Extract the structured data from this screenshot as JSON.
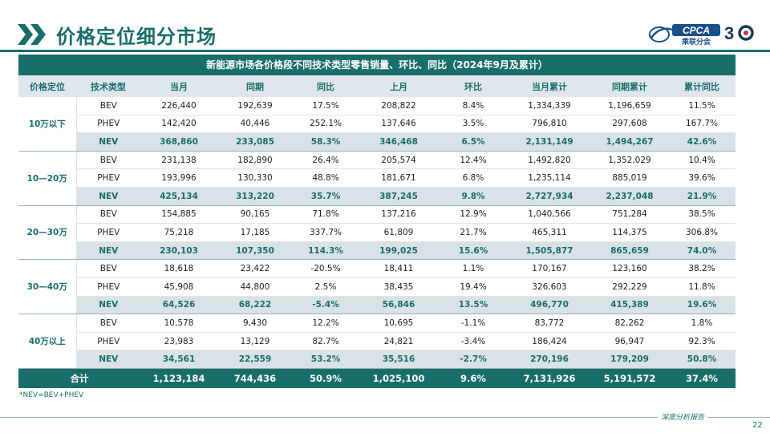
{
  "header": {
    "title": "价格定位细分市场",
    "logo_text": "CPCA",
    "logo_sub": "乘联分会",
    "anniv": "30"
  },
  "table": {
    "title": "新能源市场各价格段不同技术类型零售销量、环比、同比（2024年9月及累计）",
    "columns": [
      "价格定位",
      "技术类型",
      "当月",
      "同期",
      "同比",
      "上月",
      "环比",
      "当月累计",
      "同期累计",
      "累计同比"
    ],
    "groups": [
      {
        "label": "10万以下",
        "rows": [
          {
            "type": "BEV",
            "cells": [
              "226,440",
              "192,639",
              "17.5%",
              "208,822",
              "8.4%",
              "1,334,339",
              "1,196,659",
              "11.5%"
            ]
          },
          {
            "type": "PHEV",
            "cells": [
              "142,420",
              "40,446",
              "252.1%",
              "137,646",
              "3.5%",
              "796,810",
              "297,608",
              "167.7%"
            ]
          },
          {
            "type": "NEV",
            "cells": [
              "368,860",
              "233,085",
              "58.3%",
              "346,468",
              "6.5%",
              "2,131,149",
              "1,494,267",
              "42.6%"
            ]
          }
        ]
      },
      {
        "label": "10—20万",
        "rows": [
          {
            "type": "BEV",
            "cells": [
              "231,138",
              "182,890",
              "26.4%",
              "205,574",
              "12.4%",
              "1,492,820",
              "1,352,029",
              "10.4%"
            ]
          },
          {
            "type": "PHEV",
            "cells": [
              "193,996",
              "130,330",
              "48.8%",
              "181,671",
              "6.8%",
              "1,235,114",
              "885,019",
              "39.6%"
            ]
          },
          {
            "type": "NEV",
            "cells": [
              "425,134",
              "313,220",
              "35.7%",
              "387,245",
              "9.8%",
              "2,727,934",
              "2,237,048",
              "21.9%"
            ]
          }
        ]
      },
      {
        "label": "20—30万",
        "rows": [
          {
            "type": "BEV",
            "cells": [
              "154,885",
              "90,165",
              "71.8%",
              "137,216",
              "12.9%",
              "1,040,566",
              "751,284",
              "38.5%"
            ]
          },
          {
            "type": "PHEV",
            "cells": [
              "75,218",
              "17,185",
              "337.7%",
              "61,809",
              "21.7%",
              "465,311",
              "114,375",
              "306.8%"
            ]
          },
          {
            "type": "NEV",
            "cells": [
              "230,103",
              "107,350",
              "114.3%",
              "199,025",
              "15.6%",
              "1,505,877",
              "865,659",
              "74.0%"
            ]
          }
        ]
      },
      {
        "label": "30—40万",
        "rows": [
          {
            "type": "BEV",
            "cells": [
              "18,618",
              "23,422",
              "-20.5%",
              "18,411",
              "1.1%",
              "170,167",
              "123,160",
              "38.2%"
            ]
          },
          {
            "type": "PHEV",
            "cells": [
              "45,908",
              "44,800",
              "2.5%",
              "38,435",
              "19.4%",
              "326,603",
              "292,229",
              "11.8%"
            ]
          },
          {
            "type": "NEV",
            "cells": [
              "64,526",
              "68,222",
              "-5.4%",
              "56,846",
              "13.5%",
              "496,770",
              "415,389",
              "19.6%"
            ]
          }
        ]
      },
      {
        "label": "40万以上",
        "rows": [
          {
            "type": "BEV",
            "cells": [
              "10,578",
              "9,430",
              "12.2%",
              "10,695",
              "-1.1%",
              "83,772",
              "82,262",
              "1.8%"
            ]
          },
          {
            "type": "PHEV",
            "cells": [
              "23,983",
              "13,129",
              "82.7%",
              "24,821",
              "-3.4%",
              "186,424",
              "96,947",
              "92.3%"
            ]
          },
          {
            "type": "NEV",
            "cells": [
              "34,561",
              "22,559",
              "53.2%",
              "35,516",
              "-2.7%",
              "270,196",
              "179,209",
              "50.8%"
            ]
          }
        ]
      }
    ],
    "total": {
      "label": "合计",
      "cells": [
        "1,123,184",
        "744,436",
        "50.9%",
        "1,025,100",
        "9.6%",
        "7,131,926",
        "5,191,572",
        "37.4%"
      ]
    },
    "note": "*NEV=BEV+PHEV"
  },
  "footer": {
    "text": "深度分析报告",
    "page": "22"
  },
  "colors": {
    "accent": "#1a6e6a",
    "header_row": "#dfe7ec",
    "nev_row": "#d9e2e6"
  }
}
